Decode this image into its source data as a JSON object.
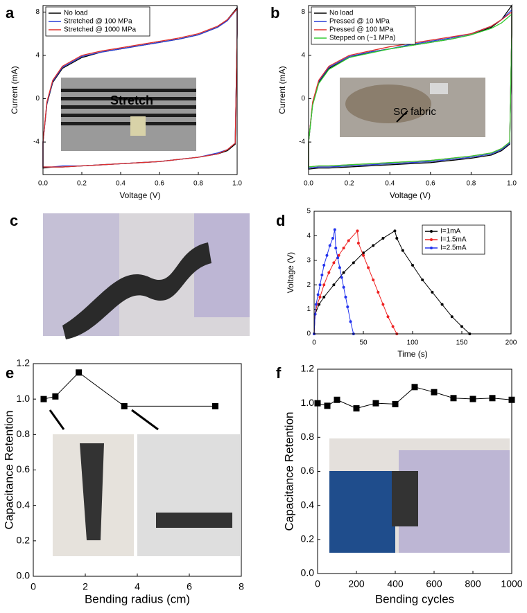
{
  "chart_data": [
    {
      "type": "line",
      "panel": "a",
      "x_label": "Voltage (V)",
      "y_label": "Current (mA)",
      "xlim": [
        0,
        1
      ],
      "xticks": [
        {
          "value": 0,
          "label": "0.0"
        },
        0.2,
        0.4,
        0.6,
        0.8,
        {
          "value": 1,
          "label": "1.0"
        }
      ],
      "ylim": [
        -7,
        8.6
      ],
      "yticks": [
        -4,
        0,
        4,
        8
      ],
      "legend": "upper left",
      "annotations": [
        "Stretch"
      ],
      "series": [
        {
          "name": "No load",
          "color": "#000000",
          "x": [
            0,
            0.02,
            0.05,
            0.1,
            0.2,
            0.3,
            0.4,
            0.5,
            0.6,
            0.7,
            0.8,
            0.9,
            0.95,
            1,
            1,
            0.99,
            0.95,
            0.9,
            0.8,
            0.7,
            0.6,
            0.5,
            0.4,
            0.3,
            0.2,
            0.1,
            0.05,
            0,
            0
          ],
          "values": [
            -4,
            -0.5,
            1.5,
            2.8,
            3.8,
            4.3,
            4.6,
            4.9,
            5.2,
            5.5,
            5.9,
            6.6,
            7.3,
            8.4,
            6,
            -4.2,
            -4.8,
            -5.1,
            -5.4,
            -5.6,
            -5.8,
            -5.9,
            -6.0,
            -6.1,
            -6.2,
            -6.3,
            -6.3,
            -6.4,
            -4
          ]
        },
        {
          "name": "Stretched @ 100 MPa",
          "color": "#2a3fd6",
          "x": [
            0,
            0.02,
            0.05,
            0.1,
            0.2,
            0.3,
            0.4,
            0.5,
            0.6,
            0.7,
            0.8,
            0.9,
            0.95,
            1,
            1,
            0.99,
            0.95,
            0.9,
            0.8,
            0.7,
            0.6,
            0.5,
            0.4,
            0.3,
            0.2,
            0.1,
            0.05,
            0,
            0
          ],
          "values": [
            -4,
            -0.4,
            1.6,
            2.9,
            3.9,
            4.3,
            4.6,
            4.9,
            5.2,
            5.5,
            5.9,
            6.6,
            7.2,
            8.3,
            6,
            -4.1,
            -4.7,
            -5.0,
            -5.4,
            -5.6,
            -5.8,
            -5.9,
            -6.0,
            -6.1,
            -6.2,
            -6.2,
            -6.3,
            -6.3,
            -4
          ]
        },
        {
          "name": "Stretched @ 1000 MPa",
          "color": "#e0302c",
          "x": [
            0,
            0.02,
            0.05,
            0.1,
            0.2,
            0.3,
            0.4,
            0.5,
            0.6,
            0.7,
            0.8,
            0.9,
            0.95,
            1,
            1,
            0.99,
            0.95,
            0.9,
            0.8,
            0.7,
            0.6,
            0.5,
            0.4,
            0.3,
            0.2,
            0.1,
            0.05,
            0,
            0
          ],
          "values": [
            -4,
            -0.3,
            1.7,
            3.0,
            4.0,
            4.4,
            4.7,
            5.0,
            5.3,
            5.6,
            6.0,
            6.7,
            7.3,
            8.3,
            6,
            -4.1,
            -4.7,
            -5.1,
            -5.4,
            -5.6,
            -5.8,
            -5.9,
            -6.0,
            -6.1,
            -6.2,
            -6.3,
            -6.3,
            -6.3,
            -4
          ]
        }
      ]
    },
    {
      "type": "line",
      "panel": "b",
      "x_label": "Voltage (V)",
      "y_label": "Current (mA)",
      "xlim": [
        0,
        1
      ],
      "xticks": [
        {
          "value": 0,
          "label": "0.0"
        },
        0.2,
        0.4,
        0.6,
        0.8,
        {
          "value": 1,
          "label": "1.0"
        }
      ],
      "ylim": [
        -7,
        8.6
      ],
      "yticks": [
        -4,
        0,
        4,
        8
      ],
      "legend": "upper left",
      "annotations": [
        "SC fabric"
      ],
      "series": [
        {
          "name": "No load",
          "color": "#000000",
          "x": [
            0,
            0.02,
            0.05,
            0.1,
            0.2,
            0.3,
            0.4,
            0.5,
            0.6,
            0.7,
            0.8,
            0.9,
            0.95,
            1,
            1,
            0.99,
            0.95,
            0.9,
            0.8,
            0.7,
            0.6,
            0.5,
            0.4,
            0.3,
            0.2,
            0.1,
            0.05,
            0,
            0
          ],
          "values": [
            -4,
            -0.5,
            1.5,
            2.8,
            3.8,
            4.3,
            4.6,
            4.9,
            5.2,
            5.5,
            5.9,
            6.6,
            7.3,
            8.6,
            6,
            -4.2,
            -4.8,
            -5.2,
            -5.5,
            -5.7,
            -5.9,
            -6.0,
            -6.1,
            -6.2,
            -6.3,
            -6.4,
            -6.4,
            -6.5,
            -4
          ]
        },
        {
          "name": "Pressed @ 10 MPa",
          "color": "#2a3fd6",
          "x": [
            0,
            0.02,
            0.05,
            0.1,
            0.2,
            0.3,
            0.4,
            0.5,
            0.6,
            0.7,
            0.8,
            0.9,
            0.95,
            1,
            1,
            0.99,
            0.95,
            0.9,
            0.8,
            0.7,
            0.6,
            0.5,
            0.4,
            0.3,
            0.2,
            0.1,
            0.05,
            0,
            0
          ],
          "values": [
            -4,
            -0.4,
            1.6,
            2.9,
            3.9,
            4.3,
            4.6,
            5.0,
            5.3,
            5.6,
            6.0,
            6.7,
            7.3,
            8.2,
            6,
            -4.1,
            -4.7,
            -5.1,
            -5.4,
            -5.6,
            -5.8,
            -5.9,
            -6.0,
            -6.1,
            -6.2,
            -6.3,
            -6.3,
            -6.4,
            -4
          ]
        },
        {
          "name": "Pressed @ 100 MPa",
          "color": "#e0302c",
          "x": [
            0,
            0.02,
            0.05,
            0.1,
            0.2,
            0.3,
            0.4,
            0.5,
            0.6,
            0.7,
            0.8,
            0.9,
            0.95,
            1,
            1,
            0.99,
            0.95,
            0.9,
            0.8,
            0.7,
            0.6,
            0.5,
            0.4,
            0.3,
            0.2,
            0.1,
            0.05,
            0,
            0
          ],
          "values": [
            -4,
            -0.3,
            1.7,
            3.0,
            4.0,
            4.4,
            4.8,
            5.1,
            5.4,
            5.7,
            6.0,
            6.7,
            7.3,
            8.0,
            6,
            -4.0,
            -4.6,
            -5.0,
            -5.3,
            -5.5,
            -5.7,
            -5.8,
            -5.9,
            -6.0,
            -6.1,
            -6.2,
            -6.2,
            -6.3,
            -4
          ]
        },
        {
          "name": "Stepped on (~1 MPa)",
          "color": "#33cc33",
          "x": [
            0,
            0.02,
            0.05,
            0.1,
            0.2,
            0.3,
            0.4,
            0.5,
            0.6,
            0.7,
            0.8,
            0.9,
            0.95,
            1,
            1,
            0.99,
            0.95,
            0.9,
            0.8,
            0.7,
            0.6,
            0.5,
            0.4,
            0.3,
            0.2,
            0.1,
            0.05,
            0,
            0
          ],
          "values": [
            -4,
            -0.6,
            1.4,
            2.7,
            3.8,
            4.2,
            4.6,
            4.9,
            5.2,
            5.5,
            5.9,
            6.5,
            7.0,
            7.8,
            6,
            -4.0,
            -4.6,
            -5.0,
            -5.3,
            -5.5,
            -5.7,
            -5.8,
            -5.9,
            -6.0,
            -6.1,
            -6.2,
            -6.2,
            -6.3,
            -4
          ]
        }
      ]
    },
    {
      "type": "line",
      "panel": "d",
      "x_label": "Time (s)",
      "y_label": "Voltage (V)",
      "xlim": [
        0,
        200
      ],
      "xticks": [
        0,
        50,
        100,
        150,
        200
      ],
      "ylim": [
        0,
        5
      ],
      "yticks": [
        0,
        1,
        2,
        3,
        4,
        5
      ],
      "legend": "upper right",
      "marker": "circle",
      "series": [
        {
          "name": "I=1mA",
          "color": "#000000",
          "x": [
            0,
            1,
            5,
            10,
            20,
            30,
            40,
            50,
            60,
            70,
            82,
            84,
            90,
            100,
            110,
            120,
            130,
            140,
            150,
            158
          ],
          "values": [
            0,
            0.8,
            1.2,
            1.5,
            2.0,
            2.5,
            2.9,
            3.3,
            3.6,
            3.9,
            4.2,
            3.9,
            3.4,
            2.8,
            2.2,
            1.7,
            1.2,
            0.7,
            0.3,
            0
          ]
        },
        {
          "name": "I=1.5mA",
          "color": "#ee2222",
          "x": [
            0,
            1,
            3,
            6,
            10,
            15,
            20,
            25,
            30,
            35,
            44,
            45,
            50,
            55,
            60,
            65,
            70,
            75,
            80,
            84
          ],
          "values": [
            0,
            0.8,
            1.2,
            1.5,
            2.0,
            2.5,
            2.9,
            3.2,
            3.5,
            3.8,
            4.2,
            3.7,
            3.2,
            2.7,
            2.2,
            1.7,
            1.2,
            0.7,
            0.3,
            0
          ]
        },
        {
          "name": "I=2.5mA",
          "color": "#2233ee",
          "x": [
            0,
            1,
            2,
            4,
            6,
            8,
            10,
            13,
            16,
            19,
            21,
            22,
            24,
            26,
            28,
            30,
            32,
            34,
            37,
            40
          ],
          "values": [
            0,
            0.8,
            1.2,
            1.6,
            2.0,
            2.4,
            2.8,
            3.2,
            3.6,
            3.9,
            4.25,
            3.5,
            3.1,
            2.7,
            2.3,
            1.9,
            1.5,
            1.1,
            0.5,
            0
          ]
        }
      ]
    },
    {
      "type": "line",
      "panel": "e",
      "x_label": "Bending radius (cm)",
      "y_label": "Capacitance Retention",
      "xlim": [
        0,
        8
      ],
      "xticks": [
        0,
        2,
        4,
        6,
        8
      ],
      "ylim": [
        0,
        1.2
      ],
      "yticks": [
        {
          "value": 0,
          "label": "0.0"
        },
        0.2,
        0.4,
        0.6,
        0.8,
        {
          "value": 1,
          "label": "1.0"
        },
        1.2
      ],
      "marker": "square",
      "x": [
        0.4,
        0.85,
        1.75,
        3.5,
        7
      ],
      "series": [
        {
          "color": "#000000",
          "values": [
            1.0,
            1.015,
            1.15,
            0.96,
            0.96
          ]
        }
      ]
    },
    {
      "type": "line",
      "panel": "f",
      "x_label": "Bending cycles",
      "y_label": "Capacitance Retention",
      "xlim": [
        0,
        1000
      ],
      "xticks": [
        0,
        200,
        400,
        600,
        800,
        1000
      ],
      "ylim": [
        0,
        1.2
      ],
      "yticks": [
        {
          "value": 0,
          "label": "0.0"
        },
        0.2,
        0.4,
        0.6,
        0.8,
        {
          "value": 1,
          "label": "1.0"
        },
        1.2
      ],
      "marker": "square",
      "x": [
        0,
        50,
        100,
        200,
        300,
        400,
        500,
        600,
        700,
        800,
        900,
        1000
      ],
      "series": [
        {
          "color": "#000000",
          "values": [
            1.0,
            0.985,
            1.02,
            0.97,
            1.0,
            0.995,
            1.095,
            1.065,
            1.03,
            1.025,
            1.03,
            1.02
          ]
        }
      ]
    }
  ],
  "photo_panel": {
    "panel": "c"
  }
}
